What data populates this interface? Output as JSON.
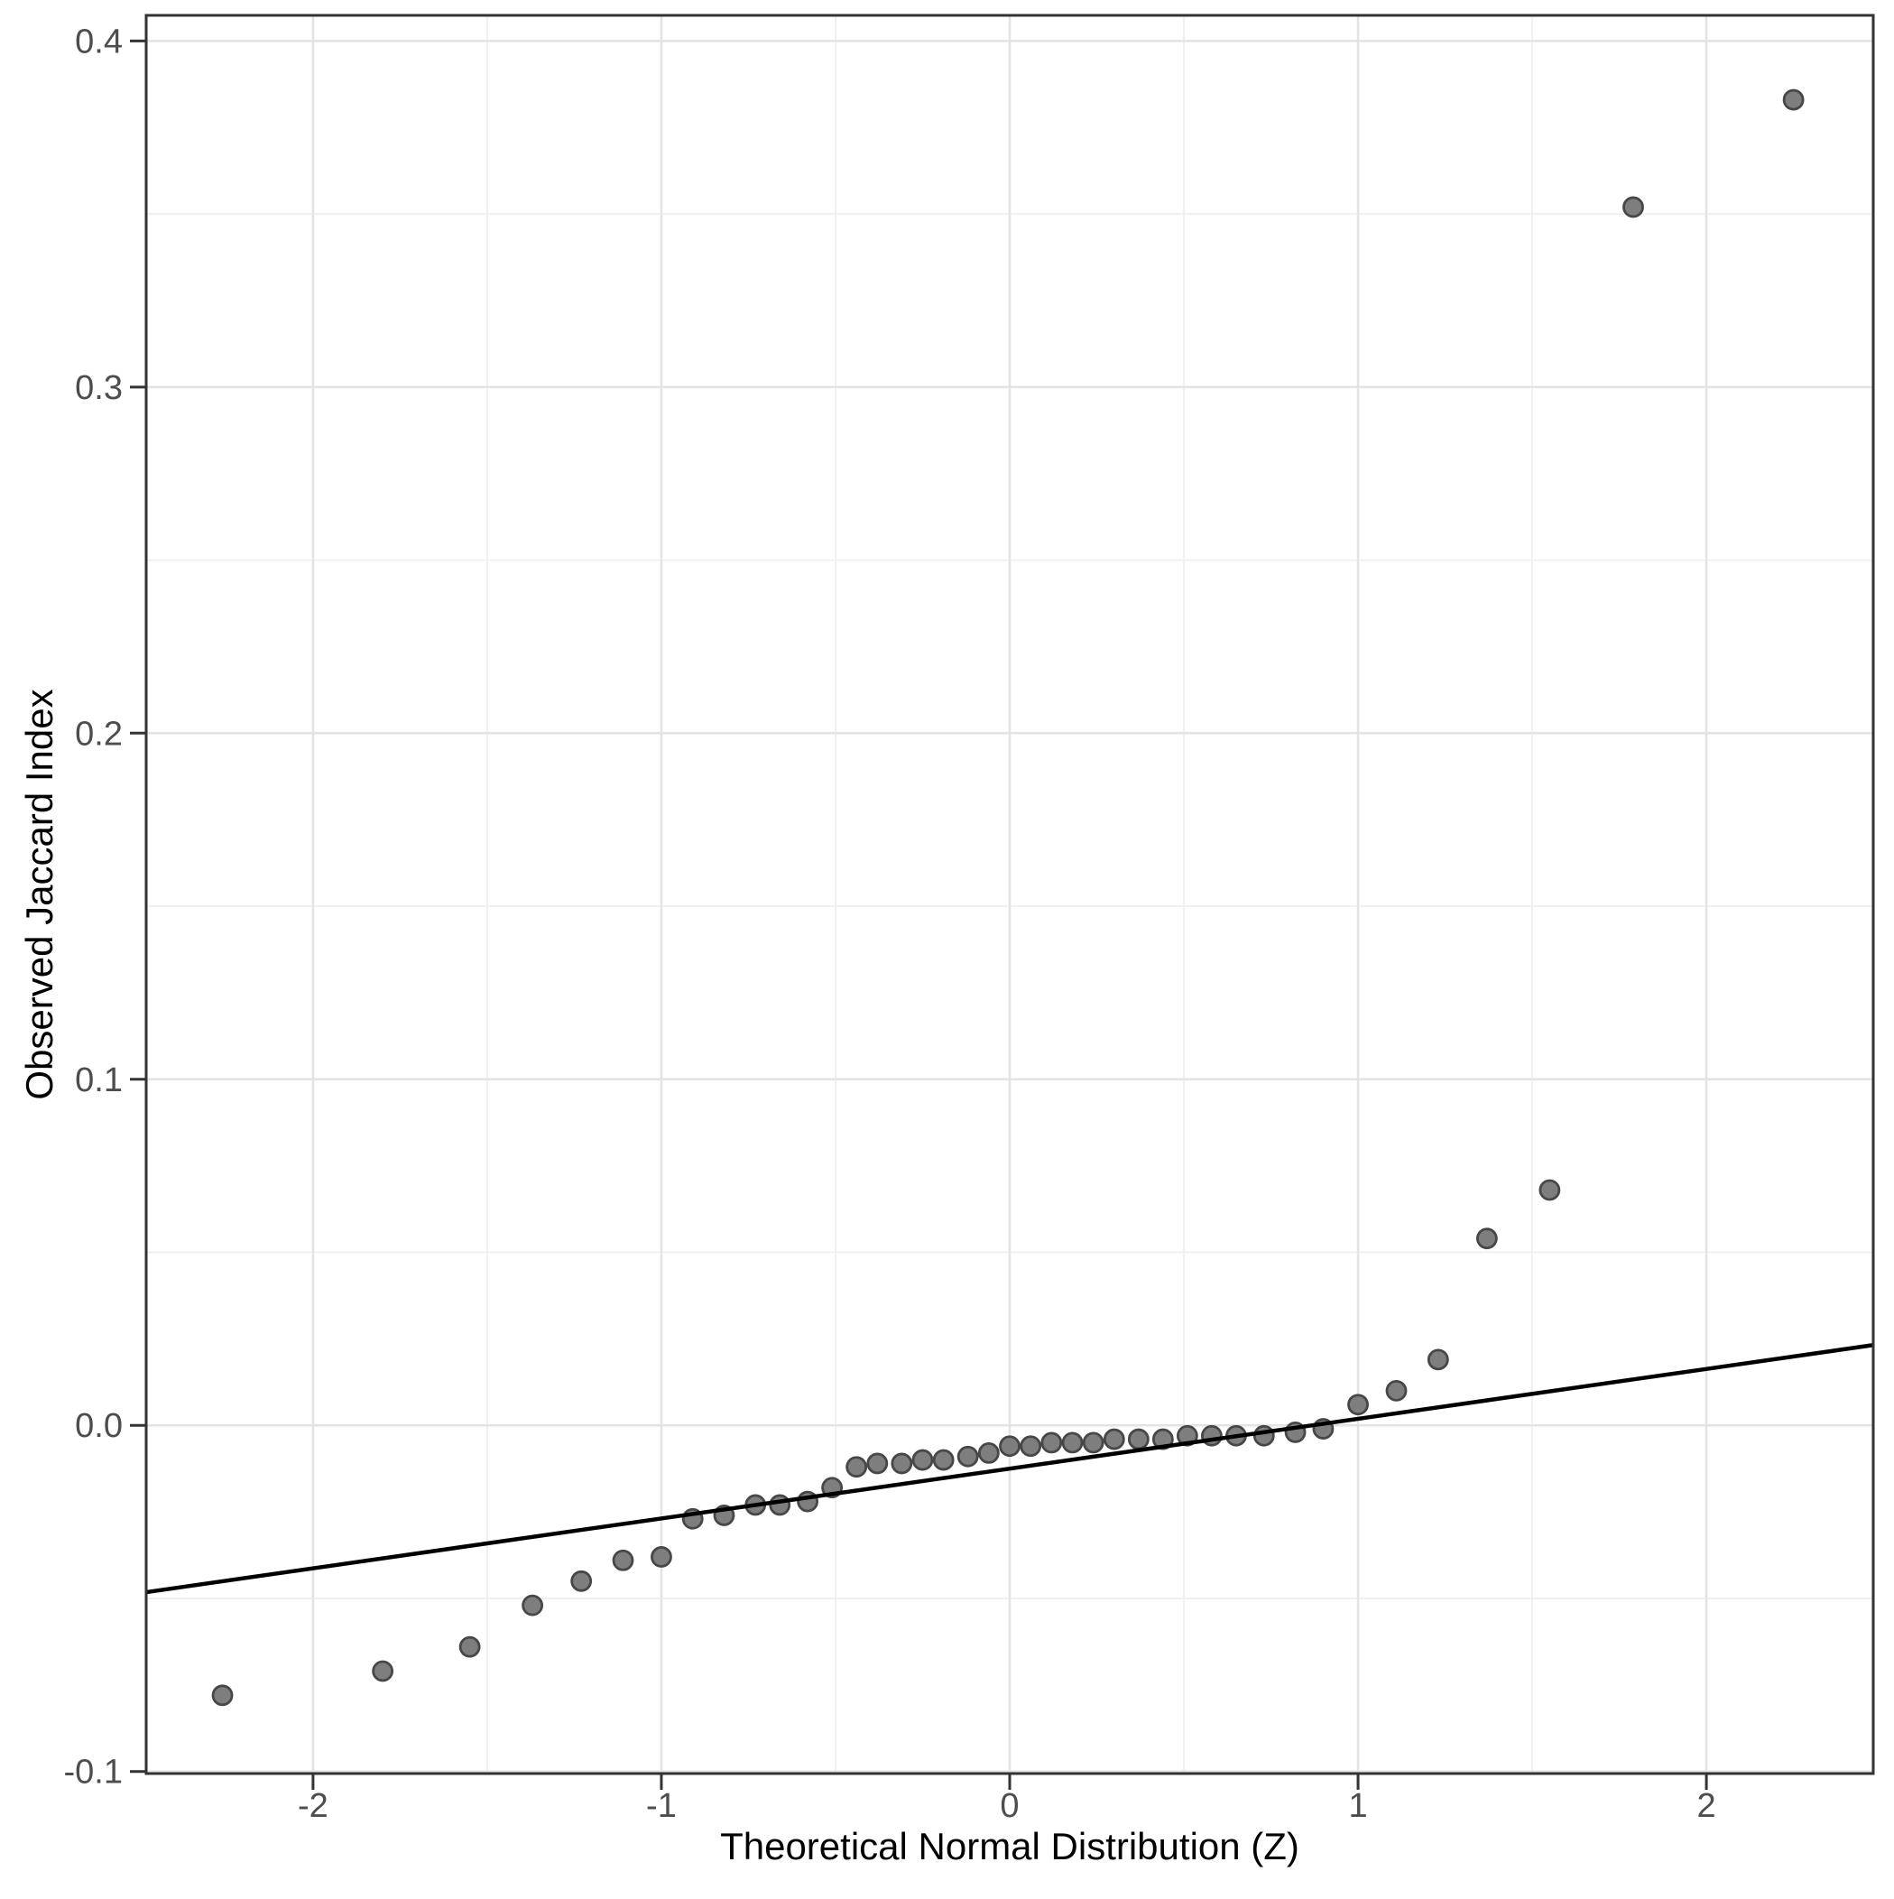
{
  "chart_data": {
    "type": "scatter",
    "title": "",
    "xlabel": "Theoretical Normal Distribution (Z)",
    "ylabel": "Observed Jaccard Index",
    "xlim": [
      -2.479,
      2.479
    ],
    "ylim": [
      -0.1006,
      0.4074
    ],
    "x_ticks": [
      -2,
      -1,
      0,
      1,
      2
    ],
    "x_tick_labels": [
      "-2",
      "-1",
      "0",
      "1",
      "2"
    ],
    "y_ticks": [
      -0.1,
      0.0,
      0.1,
      0.2,
      0.3,
      0.4
    ],
    "y_tick_labels": [
      "-0.1",
      "0.0",
      "0.1",
      "0.2",
      "0.3",
      "0.4"
    ],
    "x_minor_ticks": [
      -1.5,
      -0.5,
      0.5,
      1.5
    ],
    "y_minor_ticks": [
      -0.05,
      0.05,
      0.15,
      0.25,
      0.35
    ],
    "grid": true,
    "legend": false,
    "points": [
      [
        -2.26,
        -0.078
      ],
      [
        -1.8,
        -0.071
      ],
      [
        -1.55,
        -0.064
      ],
      [
        -1.37,
        -0.052
      ],
      [
        -1.23,
        -0.045
      ],
      [
        -1.11,
        -0.039
      ],
      [
        -1.0,
        -0.038
      ],
      [
        -0.91,
        -0.027
      ],
      [
        -0.82,
        -0.026
      ],
      [
        -0.73,
        -0.023
      ],
      [
        -0.66,
        -0.023
      ],
      [
        -0.58,
        -0.022
      ],
      [
        -0.51,
        -0.018
      ],
      [
        -0.44,
        -0.012
      ],
      [
        -0.38,
        -0.011
      ],
      [
        -0.31,
        -0.011
      ],
      [
        -0.25,
        -0.01
      ],
      [
        -0.19,
        -0.01
      ],
      [
        -0.12,
        -0.009
      ],
      [
        -0.06,
        -0.008
      ],
      [
        0.0,
        -0.006
      ],
      [
        0.06,
        -0.006
      ],
      [
        0.12,
        -0.005
      ],
      [
        0.18,
        -0.005
      ],
      [
        0.24,
        -0.005
      ],
      [
        0.3,
        -0.004
      ],
      [
        0.37,
        -0.004
      ],
      [
        0.44,
        -0.004
      ],
      [
        0.51,
        -0.003
      ],
      [
        0.58,
        -0.003
      ],
      [
        0.65,
        -0.003
      ],
      [
        0.73,
        -0.003
      ],
      [
        0.82,
        -0.002
      ],
      [
        0.9,
        -0.001
      ],
      [
        1.0,
        0.006
      ],
      [
        1.11,
        0.01
      ],
      [
        1.23,
        0.019
      ],
      [
        1.37,
        0.054
      ],
      [
        1.55,
        0.068
      ],
      [
        1.79,
        0.352
      ],
      [
        2.25,
        0.383
      ]
    ],
    "reference_line": {
      "slope": 0.0144,
      "intercept": -0.0125
    },
    "styles": {
      "point_fill": "#7e7e7e",
      "point_stroke": "#474747",
      "reference_line_color": "#000000",
      "grid_major_color": "#e3e3e3",
      "grid_minor_color": "#f0f0f0",
      "panel_border_color": "#333333",
      "tick_mark_color": "#333333",
      "tick_label_color": "#4d4d4d",
      "axis_title_color": "#000000",
      "background": "#ffffff"
    }
  }
}
